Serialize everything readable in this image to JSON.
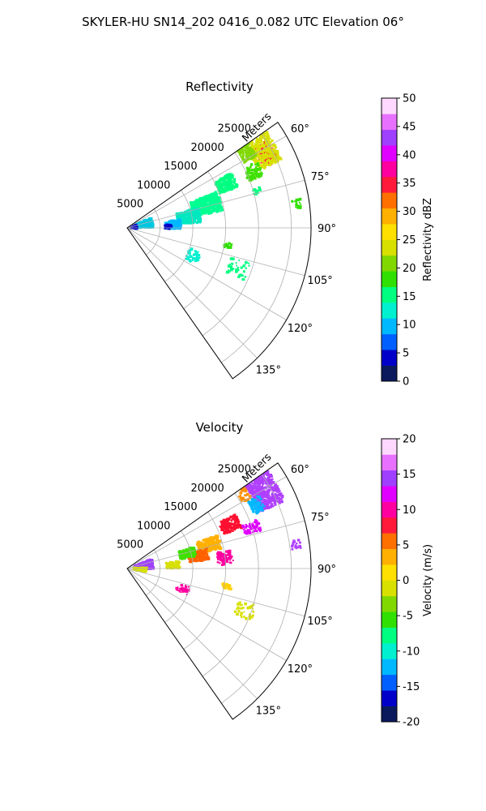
{
  "figure": {
    "suptitle": "SKYLER-HU  SN14_202  0416_0.082 UTC Elevation 06°"
  },
  "chart_data": [
    {
      "type": "heatmap",
      "title": "Reflectivity",
      "radial_label": "Meters",
      "theta_range_deg": [
        55,
        145
      ],
      "r_max": 28000,
      "r_ticks": [
        5000,
        10000,
        15000,
        20000,
        25000
      ],
      "theta_ticks": [
        60,
        75,
        90,
        105,
        120,
        135
      ],
      "theta_tick_labels": [
        "60°",
        "75°",
        "90°",
        "105°",
        "120°",
        "135°"
      ],
      "colorbar": {
        "label": "Reflectivity dBZ",
        "range": [
          0,
          50
        ],
        "ticks": [
          0,
          5,
          10,
          15,
          20,
          25,
          30,
          35,
          40,
          45,
          50
        ],
        "colors": [
          "#0a1a5c",
          "#0000c8",
          "#0060ff",
          "#00b8ff",
          "#00f0d0",
          "#00ff80",
          "#30e000",
          "#80d800",
          "#d8e000",
          "#ffe000",
          "#ffb000",
          "#ff7000",
          "#ff1a3c",
          "#ff00a0",
          "#e000ff",
          "#a040ff",
          "#e870ff",
          "#ffd8ff"
        ]
      },
      "echoes": [
        {
          "range_m": 24000,
          "az_deg": 62,
          "r_span": 2600,
          "az_span": 8,
          "color": "#ff1c3c",
          "density": 0.95
        },
        {
          "range_m": 23800,
          "az_deg": 60,
          "r_span": 4000,
          "az_span": 13,
          "color": "#d8e000",
          "density": 0.8
        },
        {
          "range_m": 21500,
          "az_deg": 58,
          "r_span": 2200,
          "az_span": 6,
          "color": "#80d800",
          "density": 0.7
        },
        {
          "range_m": 21000,
          "az_deg": 66,
          "r_span": 2400,
          "az_span": 6,
          "color": "#40e000",
          "density": 0.6
        },
        {
          "range_m": 16500,
          "az_deg": 66,
          "r_span": 3000,
          "az_span": 8,
          "color": "#00ff80",
          "density": 0.75
        },
        {
          "range_m": 12500,
          "az_deg": 74,
          "r_span": 4500,
          "az_span": 12,
          "color": "#00ff90",
          "density": 0.8
        },
        {
          "range_m": 9500,
          "az_deg": 80,
          "r_span": 3500,
          "az_span": 12,
          "color": "#00e8c0",
          "density": 0.7
        },
        {
          "range_m": 7000,
          "az_deg": 86,
          "r_span": 2400,
          "az_span": 10,
          "color": "#00b8ff",
          "density": 0.75
        },
        {
          "range_m": 6200,
          "az_deg": 88,
          "r_span": 1200,
          "az_span": 6,
          "color": "#0000c8",
          "density": 0.5
        },
        {
          "range_m": 2500,
          "az_deg": 78,
          "r_span": 3000,
          "az_span": 22,
          "color": "#00c8e0",
          "density": 0.55
        },
        {
          "range_m": 1000,
          "az_deg": 82,
          "r_span": 1000,
          "az_span": 25,
          "color": "#0000c8",
          "density": 0.45
        },
        {
          "range_m": 26000,
          "az_deg": 82,
          "r_span": 1400,
          "az_span": 3,
          "color": "#30e000",
          "density": 0.5
        },
        {
          "range_m": 15500,
          "az_deg": 100,
          "r_span": 1200,
          "az_span": 3,
          "color": "#30e000",
          "density": 0.45
        },
        {
          "range_m": 20500,
          "az_deg": 74,
          "r_span": 1200,
          "az_span": 3,
          "color": "#00ff80",
          "density": 0.4
        },
        {
          "range_m": 11000,
          "az_deg": 113,
          "r_span": 2000,
          "az_span": 10,
          "color": "#00f0d0",
          "density": 0.2
        },
        {
          "range_m": 18000,
          "az_deg": 110,
          "r_span": 3000,
          "az_span": 8,
          "color": "#00ff80",
          "density": 0.15
        }
      ]
    },
    {
      "type": "heatmap",
      "title": "Velocity",
      "radial_label": "Meters",
      "theta_range_deg": [
        55,
        145
      ],
      "r_max": 28000,
      "r_ticks": [
        5000,
        10000,
        15000,
        20000,
        25000
      ],
      "theta_ticks": [
        60,
        75,
        90,
        105,
        120,
        135
      ],
      "theta_tick_labels": [
        "60°",
        "75°",
        "90°",
        "105°",
        "120°",
        "135°"
      ],
      "colorbar": {
        "label": "Velocity (m/s)",
        "range": [
          -20,
          20
        ],
        "ticks": [
          -20,
          -15,
          -10,
          -5,
          0,
          5,
          10,
          15,
          20
        ],
        "colors": [
          "#0a1a5c",
          "#0000c8",
          "#0060ff",
          "#00b8ff",
          "#00f0d0",
          "#00ff80",
          "#30e000",
          "#80d800",
          "#d8e000",
          "#ffe000",
          "#ffb000",
          "#ff7000",
          "#ff1a3c",
          "#ff00a0",
          "#e000ff",
          "#a040ff",
          "#e870ff",
          "#ffd8ff"
        ]
      },
      "echoes": [
        {
          "range_m": 24000,
          "az_deg": 60,
          "r_span": 4200,
          "az_span": 14,
          "color": "#b040ff",
          "density": 0.9
        },
        {
          "range_m": 22000,
          "az_deg": 64,
          "r_span": 2000,
          "az_span": 6,
          "color": "#00b8ff",
          "density": 0.6
        },
        {
          "range_m": 21000,
          "az_deg": 58,
          "r_span": 1500,
          "az_span": 5,
          "color": "#ff9000",
          "density": 0.35
        },
        {
          "range_m": 17000,
          "az_deg": 67,
          "r_span": 3000,
          "az_span": 7,
          "color": "#ff1030",
          "density": 0.75
        },
        {
          "range_m": 20000,
          "az_deg": 72,
          "r_span": 2500,
          "az_span": 5,
          "color": "#e000ff",
          "density": 0.45
        },
        {
          "range_m": 13000,
          "az_deg": 74,
          "r_span": 3500,
          "az_span": 9,
          "color": "#ffb000",
          "density": 0.8
        },
        {
          "range_m": 11000,
          "az_deg": 80,
          "r_span": 3000,
          "az_span": 8,
          "color": "#ff6000",
          "density": 0.65
        },
        {
          "range_m": 9500,
          "az_deg": 76,
          "r_span": 2500,
          "az_span": 8,
          "color": "#40e000",
          "density": 0.7
        },
        {
          "range_m": 7000,
          "az_deg": 86,
          "r_span": 2000,
          "az_span": 8,
          "color": "#d8e000",
          "density": 0.6
        },
        {
          "range_m": 2500,
          "az_deg": 80,
          "r_span": 3000,
          "az_span": 22,
          "color": "#a040ff",
          "density": 0.4
        },
        {
          "range_m": 2000,
          "az_deg": 94,
          "r_span": 2000,
          "az_span": 14,
          "color": "#d8e000",
          "density": 0.35
        },
        {
          "range_m": 15000,
          "az_deg": 84,
          "r_span": 2500,
          "az_span": 8,
          "color": "#ff00a0",
          "density": 0.45
        },
        {
          "range_m": 26000,
          "az_deg": 82,
          "r_span": 1400,
          "az_span": 3,
          "color": "#b040ff",
          "density": 0.5
        },
        {
          "range_m": 15500,
          "az_deg": 100,
          "r_span": 1500,
          "az_span": 3,
          "color": "#ffd000",
          "density": 0.45
        },
        {
          "range_m": 9000,
          "az_deg": 110,
          "r_span": 2000,
          "az_span": 8,
          "color": "#ff00a0",
          "density": 0.2
        },
        {
          "range_m": 19000,
          "az_deg": 110,
          "r_span": 3000,
          "az_span": 8,
          "color": "#d8e000",
          "density": 0.15
        }
      ]
    }
  ]
}
